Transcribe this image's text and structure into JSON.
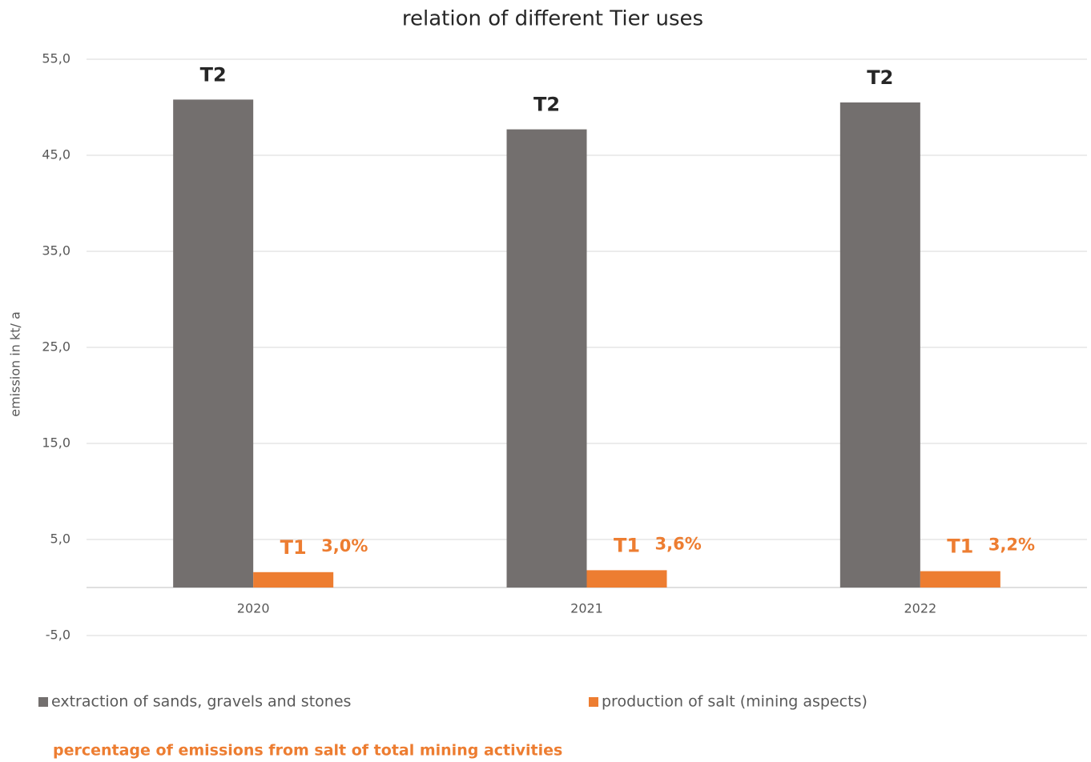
{
  "chart_data": {
    "type": "bar",
    "title": "relation of different Tier uses",
    "y_label": "emission in kt/ a",
    "categories": [
      "2020",
      "2021",
      "2022"
    ],
    "series": [
      {
        "name": "extraction of sands, gravels and stones",
        "color": "#736f6e",
        "values": [
          50.8,
          47.7,
          50.5
        ],
        "tier_labels": [
          "T2",
          "T2",
          "T2"
        ]
      },
      {
        "name": "production of salt (mining aspects)",
        "color": "#ed7d31",
        "values": [
          1.6,
          1.8,
          1.7
        ],
        "tier_labels": [
          "T1",
          "T1",
          "T1"
        ]
      }
    ],
    "percentages": {
      "label": "percentage of emissions from salt of total mining activities",
      "color": "#ed7d31",
      "values": [
        3.0,
        3.6,
        3.2
      ],
      "value_labels": [
        "3,0%",
        "3,6%",
        "3,2%"
      ]
    },
    "ylim": [
      -5,
      55
    ],
    "yticks": [
      {
        "value": -5,
        "label": "-5,0"
      },
      {
        "value": 5,
        "label": "5,0"
      },
      {
        "value": 15,
        "label": "15,0"
      },
      {
        "value": 25,
        "label": "25,0"
      },
      {
        "value": 35,
        "label": "35,0"
      },
      {
        "value": 45,
        "label": "45,0"
      },
      {
        "value": 55,
        "label": "55,0"
      }
    ],
    "grid": true
  }
}
